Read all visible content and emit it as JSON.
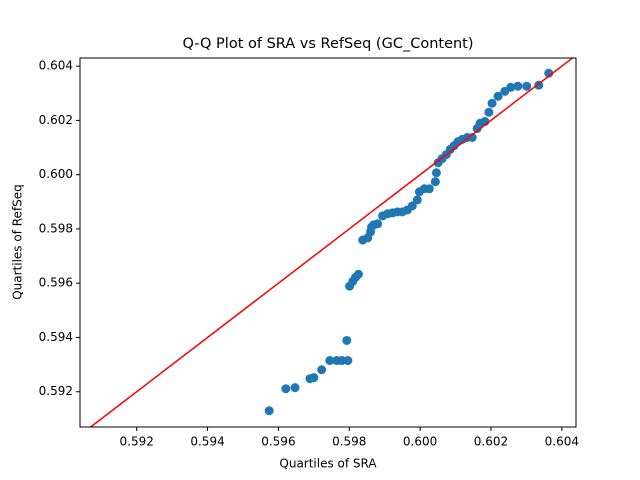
{
  "chart_data": {
    "type": "scatter",
    "title": "Q-Q Plot of SRA vs RefSeq (GC_Content)",
    "x_label": "Quartiles of SRA",
    "y_label": "Quartiles of RefSeq",
    "xlim": [
      0.5904,
      0.6044
    ],
    "ylim": [
      0.5907,
      0.6043
    ],
    "xticks": [
      0.592,
      0.594,
      0.596,
      0.598,
      {
        "value": 0.6,
        "label": "0.600"
      },
      0.602,
      0.604
    ],
    "yticks": [
      0.592,
      0.594,
      0.596,
      0.598,
      {
        "value": 0.6,
        "label": "0.600"
      },
      0.602,
      0.604
    ],
    "series": [
      {
        "color": "#1f77b4",
        "x": [
          0.59574,
          0.59621,
          0.59647,
          0.59689,
          0.597,
          0.59722,
          0.59745,
          0.59765,
          0.59779,
          0.59796,
          0.59793,
          0.59801,
          0.5981,
          0.59818,
          0.59826,
          0.59838,
          0.59852,
          0.5986,
          0.59863,
          0.59869,
          0.5988,
          0.59894,
          0.59908,
          0.59922,
          0.59936,
          0.5995,
          0.59964,
          0.59978,
          0.59992,
          0.59998,
          0.60012,
          0.60026,
          0.60043,
          0.60046,
          0.60051,
          0.60062,
          0.60074,
          0.60085,
          0.60096,
          0.60107,
          0.60119,
          0.60133,
          0.60147,
          0.60161,
          0.60169,
          0.60183,
          0.60194,
          0.60203,
          0.6022,
          0.60239,
          0.60256,
          0.60276,
          0.60301,
          0.60335,
          0.60363
        ],
        "values": [
          0.5913,
          0.59211,
          0.59215,
          0.59248,
          0.59252,
          0.59281,
          0.59315,
          0.59315,
          0.59315,
          0.59315,
          0.59389,
          0.59589,
          0.59607,
          0.59622,
          0.59633,
          0.59759,
          0.59767,
          0.59789,
          0.59807,
          0.59815,
          0.59819,
          0.59848,
          0.59856,
          0.59859,
          0.59863,
          0.59863,
          0.5987,
          0.59885,
          0.59907,
          0.59937,
          0.59948,
          0.59948,
          0.59974,
          0.60007,
          0.60044,
          0.60059,
          0.60074,
          0.60093,
          0.60107,
          0.60122,
          0.6013,
          0.60137,
          0.60137,
          0.6017,
          0.60189,
          0.60196,
          0.6023,
          0.60263,
          0.60289,
          0.60307,
          0.60322,
          0.60326,
          0.60326,
          0.6033,
          0.60374
        ]
      }
    ],
    "reference_line": {
      "color": "red",
      "x": [
        0.5904,
        0.6044
      ],
      "values": [
        0.5904,
        0.6044
      ]
    }
  }
}
